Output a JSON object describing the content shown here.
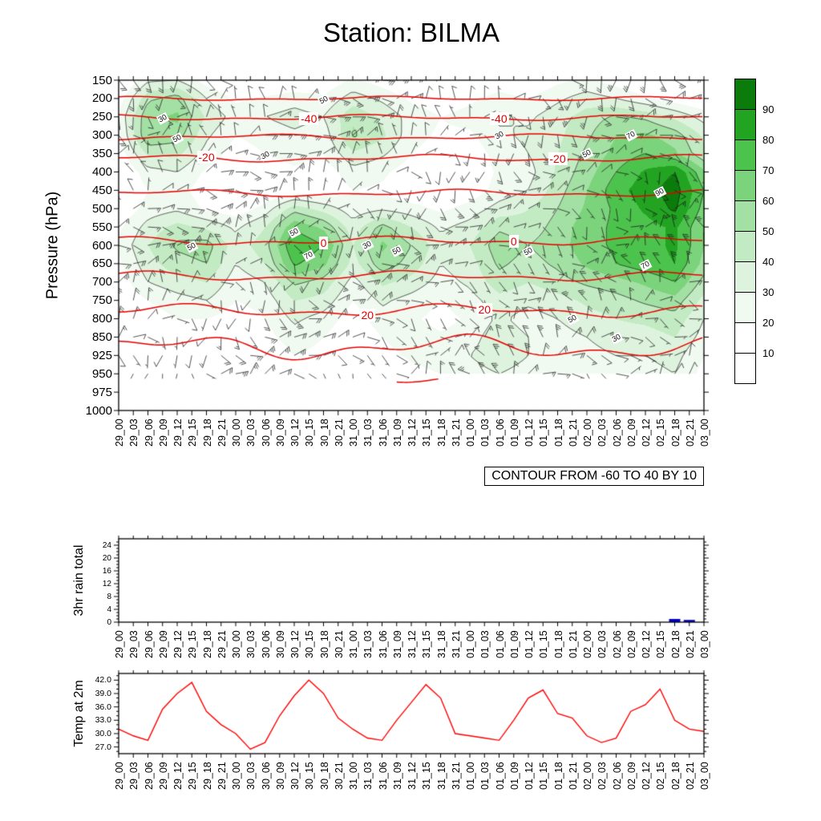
{
  "title": "Station: BILMA",
  "time_labels": [
    "29_00",
    "29_03",
    "29_06",
    "29_09",
    "29_12",
    "29_15",
    "29_18",
    "29_21",
    "30_00",
    "30_03",
    "30_06",
    "30_09",
    "30_12",
    "30_15",
    "30_18",
    "30_21",
    "31_00",
    "31_03",
    "31_06",
    "31_09",
    "31_12",
    "31_15",
    "31_18",
    "31_21",
    "01_00",
    "01_03",
    "01_06",
    "01_09",
    "01_12",
    "01_15",
    "01_18",
    "01_21",
    "02_00",
    "02_03",
    "02_06",
    "02_09",
    "02_12",
    "02_15",
    "02_18",
    "02_21",
    "03_00"
  ],
  "panels": {
    "main": {
      "ylabel": "Pressure (hPa)",
      "contour_note": "CONTOUR FROM -60 TO 40 BY 10",
      "pressure_tick_labels": [
        "150",
        "200",
        "250",
        "300",
        "350",
        "400",
        "450",
        "500",
        "550",
        "600",
        "650",
        "700",
        "750",
        "800",
        "850",
        "925",
        "950",
        "975",
        "1000"
      ]
    },
    "rain": {
      "ylabel": "3hr rain total",
      "ytick_labels": [
        "0",
        "4",
        "8",
        "12",
        "16",
        "20",
        "24"
      ]
    },
    "temp": {
      "ylabel": "Temp at 2m",
      "ytick_labels": [
        "27.0",
        "30.0",
        "33.0",
        "36.0",
        "39.0",
        "42.0"
      ]
    }
  },
  "colorbar": {
    "labels_top_to_bottom": [
      "90",
      "80",
      "70",
      "60",
      "50",
      "40",
      "30",
      "20",
      "10"
    ],
    "palette_low_to_high": [
      "#ffffff",
      "#ffffff",
      "#f0faf0",
      "#ddf3dd",
      "#c3ebc3",
      "#a3e0a3",
      "#7bd37b",
      "#4cc34c",
      "#22a422",
      "#0b7c0b"
    ]
  },
  "chart_data": [
    {
      "type": "heatmap",
      "name": "relative-humidity-time-height-section",
      "ylabel": "Pressure (hPa)",
      "x": "time_labels",
      "y_levels_hPa": [
        150,
        200,
        250,
        300,
        350,
        400,
        450,
        500,
        550,
        600,
        650,
        700,
        750,
        800,
        850,
        925,
        950,
        975,
        1000
      ],
      "fill_boundaries": [
        10,
        20,
        30,
        40,
        50,
        60,
        70,
        80,
        90
      ],
      "contour_note": "CONTOUR FROM -60 TO 40 BY 10",
      "grid_time_labels": [
        "29_00",
        "29_06",
        "29_12",
        "29_18",
        "30_00",
        "30_06",
        "30_12",
        "30_18",
        "31_00",
        "31_06",
        "31_12",
        "31_18",
        "01_00",
        "01_06",
        "01_12",
        "01_18",
        "02_00",
        "02_06",
        "02_12",
        "02_18",
        "03_00"
      ],
      "grid_levels_hPa": [
        150,
        200,
        250,
        300,
        350,
        400,
        450,
        500,
        550,
        600,
        650,
        700,
        750,
        800,
        850,
        925,
        950
      ],
      "values_percent": [
        [
          5,
          28,
          30,
          15,
          8,
          8,
          10,
          12,
          22,
          15,
          8,
          8,
          10,
          14,
          10,
          18,
          22,
          15,
          8,
          5,
          5
        ],
        [
          15,
          48,
          55,
          30,
          18,
          22,
          26,
          22,
          35,
          28,
          18,
          14,
          18,
          24,
          20,
          28,
          35,
          30,
          22,
          15,
          10
        ],
        [
          22,
          58,
          62,
          38,
          26,
          30,
          34,
          30,
          48,
          38,
          26,
          20,
          24,
          32,
          28,
          36,
          45,
          52,
          48,
          38,
          26
        ],
        [
          18,
          60,
          55,
          32,
          20,
          24,
          28,
          24,
          52,
          42,
          24,
          18,
          18,
          28,
          32,
          38,
          48,
          60,
          62,
          55,
          38
        ],
        [
          14,
          42,
          42,
          26,
          15,
          20,
          24,
          20,
          38,
          32,
          20,
          14,
          14,
          24,
          30,
          40,
          52,
          64,
          70,
          62,
          42
        ],
        [
          8,
          26,
          30,
          18,
          10,
          14,
          18,
          14,
          26,
          22,
          14,
          10,
          12,
          22,
          26,
          42,
          56,
          70,
          82,
          90,
          62
        ],
        [
          8,
          20,
          24,
          14,
          8,
          10,
          14,
          12,
          20,
          18,
          12,
          10,
          14,
          24,
          30,
          46,
          60,
          76,
          86,
          95,
          70
        ],
        [
          12,
          24,
          28,
          18,
          14,
          24,
          46,
          36,
          24,
          28,
          24,
          18,
          24,
          34,
          40,
          50,
          62,
          72,
          82,
          92,
          66
        ],
        [
          18,
          34,
          44,
          38,
          28,
          40,
          68,
          58,
          34,
          54,
          40,
          28,
          34,
          48,
          44,
          54,
          66,
          72,
          76,
          82,
          60
        ],
        [
          22,
          40,
          52,
          55,
          34,
          46,
          80,
          70,
          40,
          62,
          50,
          34,
          40,
          56,
          50,
          56,
          66,
          72,
          76,
          82,
          60
        ],
        [
          18,
          36,
          46,
          50,
          30,
          40,
          72,
          62,
          36,
          56,
          46,
          30,
          36,
          52,
          46,
          52,
          62,
          70,
          76,
          80,
          56
        ],
        [
          14,
          30,
          36,
          40,
          24,
          30,
          52,
          46,
          26,
          42,
          36,
          26,
          32,
          46,
          40,
          46,
          52,
          56,
          62,
          70,
          46
        ],
        [
          10,
          20,
          26,
          30,
          20,
          24,
          40,
          36,
          20,
          32,
          26,
          20,
          26,
          36,
          32,
          36,
          42,
          46,
          52,
          56,
          36
        ],
        [
          8,
          14,
          20,
          20,
          14,
          20,
          32,
          26,
          14,
          26,
          22,
          16,
          22,
          32,
          26,
          30,
          36,
          40,
          42,
          46,
          30
        ],
        [
          6,
          10,
          16,
          14,
          10,
          16,
          26,
          20,
          10,
          20,
          26,
          22,
          26,
          36,
          30,
          26,
          30,
          36,
          36,
          40,
          26
        ],
        [
          4,
          8,
          10,
          10,
          6,
          10,
          20,
          16,
          10,
          16,
          22,
          26,
          30,
          36,
          30,
          26,
          26,
          30,
          30,
          34,
          20
        ],
        [
          4,
          6,
          8,
          8,
          6,
          10,
          16,
          10,
          6,
          10,
          16,
          20,
          26,
          30,
          26,
          20,
          20,
          26,
          26,
          30,
          16
        ]
      ],
      "temperature_contours_C": [
        {
          "value": "-50",
          "pressure": 200,
          "wiggle": 3,
          "labels": []
        },
        {
          "value": "-40",
          "pressure": 252,
          "wiggle": 4,
          "labels": [
            "30_15",
            "01_06"
          ]
        },
        {
          "value": "-30",
          "pressure": 305,
          "wiggle": 4,
          "labels": []
        },
        {
          "value": "-20",
          "pressure": 363,
          "wiggle": 5,
          "labels": [
            "29_18",
            "01_18"
          ]
        },
        {
          "value": "-10",
          "pressure": 458,
          "wiggle": 5,
          "labels": []
        },
        {
          "value": "0",
          "pressure": 588,
          "wiggle": 6,
          "labels": [
            "30_18",
            "01_09"
          ]
        },
        {
          "value": "10",
          "pressure": 684,
          "wiggle": 7,
          "labels": []
        },
        {
          "value": "20",
          "pressure": 778,
          "wiggle": 9,
          "labels": [
            "31_03",
            "01_03"
          ]
        },
        {
          "value": "30",
          "pressure": 892,
          "wiggle": 17,
          "labels": []
        },
        {
          "value": "40",
          "pressure": 953,
          "wiggle": 9,
          "labels": [],
          "t0": 19,
          "t1": 22
        }
      ],
      "contour_value_labels": [
        {
          "t": "29_09",
          "p": 255,
          "v": "30"
        },
        {
          "t": "29_12",
          "p": 310,
          "v": "50"
        },
        {
          "t": "29_15",
          "p": 605,
          "v": "50"
        },
        {
          "t": "30_06",
          "p": 355,
          "v": "30"
        },
        {
          "t": "30_12",
          "p": 565,
          "v": "50"
        },
        {
          "t": "30_15",
          "p": 628,
          "v": "70"
        },
        {
          "t": "30_18",
          "p": 205,
          "v": "50"
        },
        {
          "t": "31_03",
          "p": 600,
          "v": "30"
        },
        {
          "t": "31_09",
          "p": 615,
          "v": "50"
        },
        {
          "t": "01_06",
          "p": 300,
          "v": "30"
        },
        {
          "t": "01_12",
          "p": 618,
          "v": "50"
        },
        {
          "t": "01_21",
          "p": 800,
          "v": "50"
        },
        {
          "t": "02_00",
          "p": 350,
          "v": "50"
        },
        {
          "t": "02_06",
          "p": 855,
          "v": "30"
        },
        {
          "t": "02_09",
          "p": 300,
          "v": "70"
        },
        {
          "t": "02_12",
          "p": 655,
          "v": "70"
        },
        {
          "t": "02_15",
          "p": 455,
          "v": "90"
        }
      ]
    },
    {
      "type": "bar",
      "name": "rain-3hr-total",
      "ylabel": "3hr rain total",
      "x": "time_labels",
      "yticks": [
        0,
        4,
        8,
        12,
        16,
        20,
        24
      ],
      "ylim": [
        0,
        26
      ],
      "bar_color": "#0000cc",
      "values": [
        0,
        0,
        0,
        0,
        0,
        0,
        0,
        0,
        0,
        0,
        0,
        0,
        0,
        0,
        0,
        0,
        0,
        0,
        0,
        0,
        0,
        0,
        0,
        0,
        0,
        0,
        0,
        0,
        0,
        0,
        0,
        0,
        0,
        0,
        0,
        0,
        0,
        0,
        1.0,
        0.7,
        0
      ]
    },
    {
      "type": "line",
      "name": "temp-at-2m",
      "ylabel": "Temp at 2m",
      "x": "time_labels",
      "yticks": [
        27,
        30,
        33,
        36,
        39,
        42
      ],
      "ylim": [
        25.5,
        43.5
      ],
      "line_color": "#ff0000",
      "values": [
        31,
        29.5,
        28.5,
        35.5,
        39,
        41.5,
        35,
        32,
        30,
        26.5,
        28,
        34,
        38.5,
        42,
        39,
        33.5,
        31,
        29,
        28.5,
        33,
        37,
        41,
        38,
        30,
        29.5,
        29,
        28.5,
        33,
        38,
        39.8,
        34.5,
        33.5,
        29.5,
        28,
        29,
        35,
        36.5,
        40,
        33,
        31,
        30.5
      ]
    }
  ],
  "wind": {
    "seed": 13,
    "color": "#1a1a1a",
    "note": "wind barbs"
  }
}
